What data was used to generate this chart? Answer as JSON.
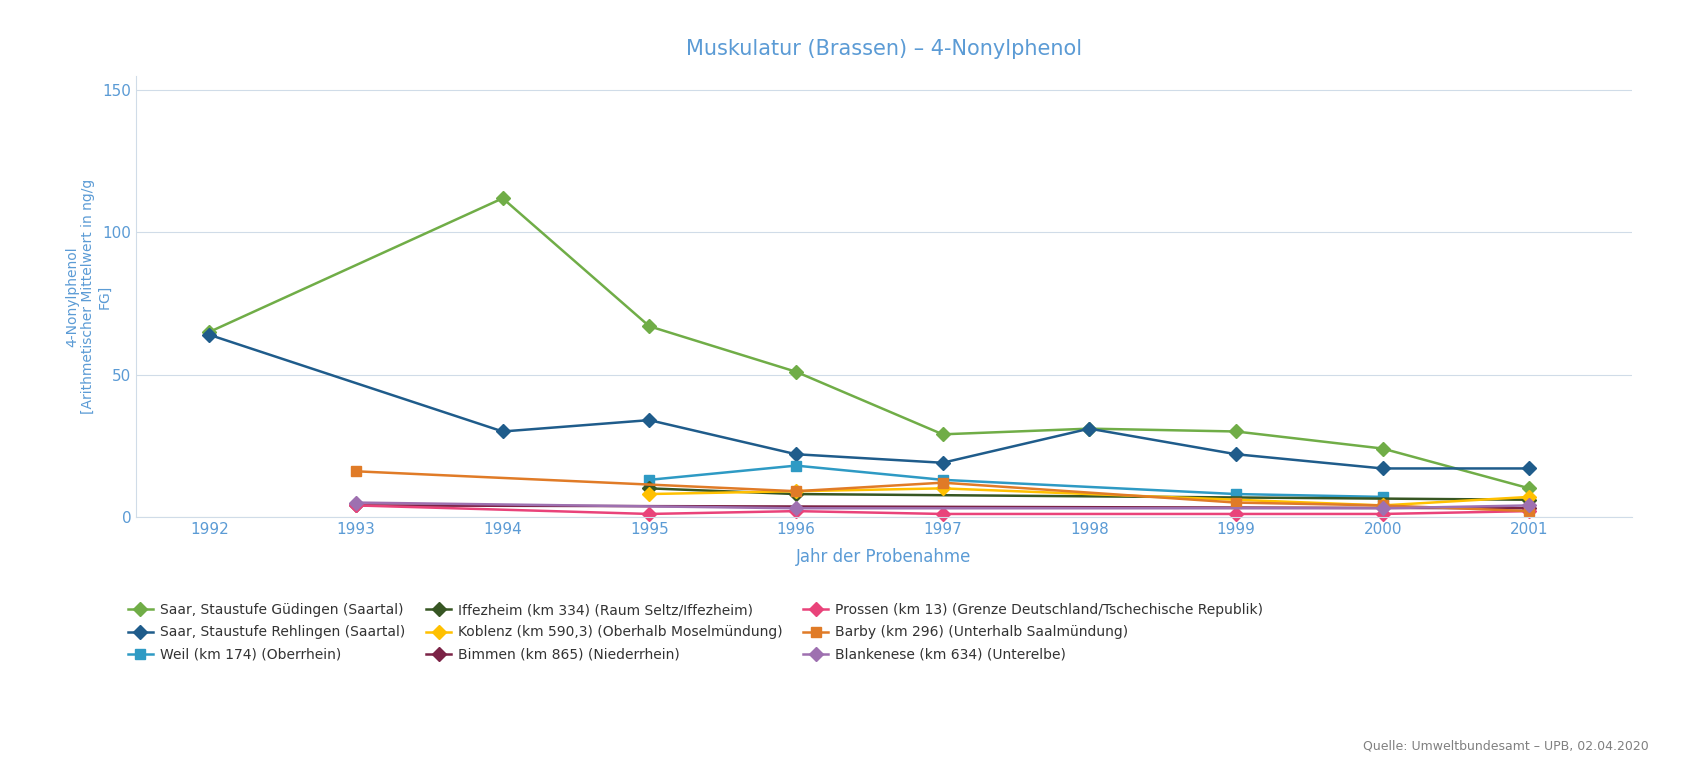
{
  "title": "Muskulatur (Brassen) – 4-Nonylphenol",
  "xlabel": "Jahr der Probenahme",
  "ylabel": "4-Nonylphenol\n[Arithmetischer Mittelwert in ng/g\nFG]",
  "title_color": "#5b9bd5",
  "axis_label_color": "#5b9bd5",
  "background_color": "#ffffff",
  "plot_bg_color": "#ffffff",
  "ylim": [
    0,
    155
  ],
  "yticks": [
    0,
    50,
    100,
    150
  ],
  "series": [
    {
      "label": "Saar, Staustufe Güdingen (Saartal)",
      "color": "#70ad47",
      "marker": "D",
      "years": [
        1992,
        1994,
        1995,
        1996,
        1997,
        1998,
        1999,
        2000,
        2001
      ],
      "values": [
        65,
        112,
        67,
        51,
        29,
        31,
        30,
        24,
        10
      ]
    },
    {
      "label": "Saar, Staustufe Rehlingen (Saartal)",
      "color": "#1f5c8b",
      "marker": "D",
      "years": [
        1992,
        1994,
        1995,
        1996,
        1997,
        1998,
        1999,
        2000,
        2001
      ],
      "values": [
        64,
        30,
        34,
        22,
        19,
        31,
        22,
        17,
        17
      ]
    },
    {
      "label": "Weil (km 174) (Oberrhein)",
      "color": "#2e9ac4",
      "marker": "s",
      "years": [
        1995,
        1996,
        1997,
        1999,
        2000
      ],
      "values": [
        13,
        18,
        13,
        8,
        7
      ]
    },
    {
      "label": "Iffezheim (km 334) (Raum Seltz/Iffezheim)",
      "color": "#375623",
      "marker": "D",
      "years": [
        1995,
        1996,
        2001
      ],
      "values": [
        10,
        8,
        6
      ]
    },
    {
      "label": "Koblenz (km 590,3) (Oberhalb Moselmündung)",
      "color": "#ffc000",
      "marker": "D",
      "years": [
        1995,
        1996,
        1997,
        2000,
        2001
      ],
      "values": [
        8,
        9,
        10,
        4,
        7
      ]
    },
    {
      "label": "Bimmen (km 865) (Niederrhein)",
      "color": "#7b2346",
      "marker": "D",
      "years": [
        1993,
        2001
      ],
      "values": [
        4,
        3
      ]
    },
    {
      "label": "Prossen (km 13) (Grenze Deutschland/Tschechische Republik)",
      "color": "#e9437a",
      "marker": "D",
      "years": [
        1993,
        1995,
        1996,
        1997,
        1999,
        2000,
        2001
      ],
      "values": [
        4,
        1,
        2,
        1,
        1,
        1,
        2
      ]
    },
    {
      "label": "Barby (km 296) (Unterhalb Saalmündung)",
      "color": "#e07b27",
      "marker": "s",
      "years": [
        1993,
        1996,
        1997,
        1999,
        2000,
        2001
      ],
      "values": [
        16,
        9,
        12,
        5,
        4,
        2
      ]
    },
    {
      "label": "Blankenese (km 634) (Unterelbe)",
      "color": "#9e70b0",
      "marker": "D",
      "years": [
        1993,
        1996,
        2000,
        2001
      ],
      "values": [
        5,
        3,
        3,
        4
      ]
    }
  ],
  "legend_order": [
    0,
    1,
    2,
    3,
    4,
    5,
    6,
    7,
    8
  ],
  "source_text": "Quelle: Umweltbundesamt – UPB, 02.04.2020",
  "grid_color": "#d0dce8",
  "tick_color": "#5b9bd5"
}
